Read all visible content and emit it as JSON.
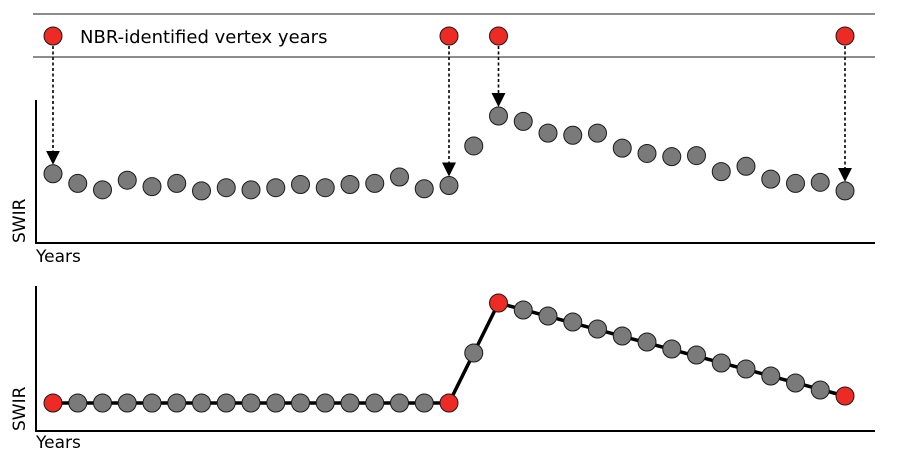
{
  "legend": {
    "label": "NBR-identified vertex years"
  },
  "colors": {
    "vertex": "#ee2a24",
    "point": "#7a7a7a",
    "outline": "#1a1a1a",
    "line": "#000000",
    "band_line": "#8c8c8c"
  },
  "chart_data": [
    {
      "type": "scatter",
      "title": "",
      "xlabel": "Years",
      "ylabel": "SWIR",
      "x": [
        1,
        2,
        3,
        4,
        5,
        6,
        7,
        8,
        9,
        10,
        11,
        12,
        13,
        14,
        15,
        16,
        17,
        18,
        19,
        20,
        21,
        22,
        23,
        24,
        25,
        26,
        27,
        28,
        29,
        30,
        31,
        32,
        33
      ],
      "y": [
        0.46,
        0.37,
        0.31,
        0.4,
        0.34,
        0.37,
        0.3,
        0.33,
        0.31,
        0.33,
        0.36,
        0.33,
        0.36,
        0.37,
        0.43,
        0.32,
        0.35,
        0.72,
        1.0,
        0.95,
        0.84,
        0.82,
        0.84,
        0.7,
        0.65,
        0.62,
        0.63,
        0.48,
        0.53,
        0.41,
        0.37,
        0.38,
        0.3
      ],
      "vertex_x": [
        1,
        17,
        19,
        33
      ]
    },
    {
      "type": "line",
      "title": "",
      "xlabel": "Years",
      "ylabel": "SWIR",
      "x": [
        1,
        2,
        3,
        4,
        5,
        6,
        7,
        8,
        9,
        10,
        11,
        12,
        13,
        14,
        15,
        16,
        17,
        18,
        19,
        20,
        21,
        22,
        23,
        24,
        25,
        26,
        27,
        28,
        29,
        30,
        31,
        32,
        33
      ],
      "y": [
        0,
        0,
        0,
        0,
        0,
        0,
        0,
        0,
        0,
        0,
        0,
        0,
        0,
        0,
        0,
        0,
        0,
        0.5,
        1.0,
        0.93,
        0.87,
        0.81,
        0.74,
        0.67,
        0.61,
        0.54,
        0.48,
        0.4,
        0.34,
        0.27,
        0.2,
        0.13,
        0.07
      ],
      "vertex_x": [
        1,
        17,
        19,
        33
      ]
    }
  ]
}
